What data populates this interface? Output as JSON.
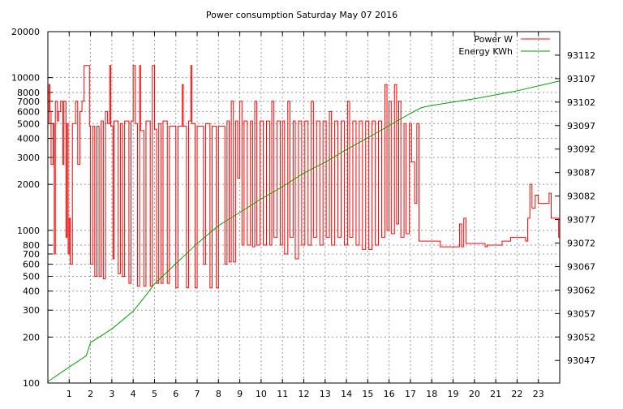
{
  "chart_data": {
    "type": "line",
    "title": "Power consumption Saturday May 07 2016",
    "xlabel": "",
    "ylabel": "",
    "xlim": [
      0,
      24
    ],
    "x_ticks": [
      1,
      2,
      3,
      4,
      5,
      6,
      7,
      8,
      9,
      10,
      11,
      12,
      13,
      14,
      15,
      16,
      17,
      18,
      19,
      20,
      21,
      22,
      23
    ],
    "y_left": {
      "scale": "log",
      "lim": [
        100,
        20000
      ],
      "tick_labels": [
        "100",
        "200",
        "300",
        "400",
        "500",
        "600",
        "700",
        "800",
        "1000",
        "2000",
        "3000",
        "4000",
        "5000",
        "6000",
        "7000",
        "8000",
        "10000",
        "20000"
      ],
      "ticks": [
        100,
        200,
        300,
        400,
        500,
        600,
        700,
        800,
        1000,
        2000,
        3000,
        4000,
        5000,
        6000,
        7000,
        8000,
        10000,
        20000
      ]
    },
    "y_right": {
      "scale": "linear",
      "lim": [
        93042.2,
        93117
      ],
      "ticks": [
        93047,
        93052,
        93057,
        93062,
        93067,
        93072,
        93077,
        93082,
        93087,
        93092,
        93097,
        93102,
        93107,
        93112
      ]
    },
    "grid": true,
    "legend_position": "top-right",
    "series": [
      {
        "name": "Power W",
        "axis": "left",
        "color": "#ff0000",
        "style": "steps",
        "points": [
          [
            0,
            5000
          ],
          [
            0.05,
            9000
          ],
          [
            0.1,
            6000
          ],
          [
            0.15,
            2700
          ],
          [
            0.25,
            5000
          ],
          [
            0.3,
            700
          ],
          [
            0.35,
            7000
          ],
          [
            0.45,
            5200
          ],
          [
            0.5,
            6000
          ],
          [
            0.6,
            7000
          ],
          [
            0.7,
            2700
          ],
          [
            0.75,
            7000
          ],
          [
            0.85,
            900
          ],
          [
            0.9,
            5000
          ],
          [
            0.95,
            700
          ],
          [
            1.0,
            1200
          ],
          [
            1.05,
            600
          ],
          [
            1.15,
            5000
          ],
          [
            1.3,
            7000
          ],
          [
            1.4,
            2700
          ],
          [
            1.5,
            6000
          ],
          [
            1.6,
            7000
          ],
          [
            1.7,
            12000
          ],
          [
            1.95,
            4800
          ],
          [
            2.0,
            600
          ],
          [
            2.1,
            4800
          ],
          [
            2.2,
            500
          ],
          [
            2.3,
            4800
          ],
          [
            2.4,
            500
          ],
          [
            2.5,
            5200
          ],
          [
            2.6,
            480
          ],
          [
            2.7,
            6000
          ],
          [
            2.8,
            5000
          ],
          [
            2.9,
            12000
          ],
          [
            2.95,
            4800
          ],
          [
            3.05,
            650
          ],
          [
            3.1,
            5200
          ],
          [
            3.3,
            520
          ],
          [
            3.4,
            5000
          ],
          [
            3.5,
            500
          ],
          [
            3.6,
            5200
          ],
          [
            3.8,
            450
          ],
          [
            3.9,
            5200
          ],
          [
            4.0,
            12000
          ],
          [
            4.1,
            5000
          ],
          [
            4.2,
            430
          ],
          [
            4.3,
            12000
          ],
          [
            4.35,
            4500
          ],
          [
            4.5,
            430
          ],
          [
            4.6,
            5200
          ],
          [
            4.8,
            430
          ],
          [
            4.9,
            12000
          ],
          [
            5.0,
            4600
          ],
          [
            5.1,
            450
          ],
          [
            5.2,
            5000
          ],
          [
            5.3,
            450
          ],
          [
            5.4,
            5200
          ],
          [
            5.6,
            450
          ],
          [
            5.7,
            4800
          ],
          [
            6.0,
            420
          ],
          [
            6.1,
            4800
          ],
          [
            6.3,
            9000
          ],
          [
            6.35,
            4800
          ],
          [
            6.5,
            420
          ],
          [
            6.6,
            5200
          ],
          [
            6.7,
            12000
          ],
          [
            6.75,
            5000
          ],
          [
            6.9,
            420
          ],
          [
            7.0,
            4800
          ],
          [
            7.3,
            600
          ],
          [
            7.4,
            5000
          ],
          [
            7.6,
            420
          ],
          [
            7.7,
            4800
          ],
          [
            7.9,
            420
          ],
          [
            8.0,
            4800
          ],
          [
            8.3,
            600
          ],
          [
            8.4,
            5200
          ],
          [
            8.5,
            620
          ],
          [
            8.6,
            7000
          ],
          [
            8.7,
            620
          ],
          [
            8.8,
            5200
          ],
          [
            8.9,
            2200
          ],
          [
            9.0,
            7000
          ],
          [
            9.1,
            800
          ],
          [
            9.2,
            5200
          ],
          [
            9.35,
            800
          ],
          [
            9.5,
            5200
          ],
          [
            9.6,
            780
          ],
          [
            9.7,
            7000
          ],
          [
            9.8,
            800
          ],
          [
            9.95,
            5200
          ],
          [
            10.1,
            800
          ],
          [
            10.25,
            5200
          ],
          [
            10.4,
            800
          ],
          [
            10.5,
            7000
          ],
          [
            10.6,
            900
          ],
          [
            10.75,
            5200
          ],
          [
            10.9,
            800
          ],
          [
            11.0,
            5200
          ],
          [
            11.1,
            700
          ],
          [
            11.25,
            7000
          ],
          [
            11.35,
            900
          ],
          [
            11.5,
            5200
          ],
          [
            11.6,
            650
          ],
          [
            11.75,
            5200
          ],
          [
            11.9,
            800
          ],
          [
            12.05,
            5200
          ],
          [
            12.2,
            800
          ],
          [
            12.35,
            7000
          ],
          [
            12.45,
            900
          ],
          [
            12.6,
            5200
          ],
          [
            12.75,
            800
          ],
          [
            12.9,
            5200
          ],
          [
            13.05,
            900
          ],
          [
            13.2,
            6000
          ],
          [
            13.3,
            800
          ],
          [
            13.45,
            5200
          ],
          [
            13.6,
            900
          ],
          [
            13.75,
            5200
          ],
          [
            13.9,
            800
          ],
          [
            14.05,
            7000
          ],
          [
            14.15,
            900
          ],
          [
            14.3,
            5200
          ],
          [
            14.45,
            800
          ],
          [
            14.6,
            5200
          ],
          [
            14.75,
            750
          ],
          [
            14.9,
            5200
          ],
          [
            15.05,
            750
          ],
          [
            15.2,
            5200
          ],
          [
            15.35,
            800
          ],
          [
            15.5,
            5200
          ],
          [
            15.65,
            900
          ],
          [
            15.8,
            9000
          ],
          [
            15.9,
            1000
          ],
          [
            16.0,
            7000
          ],
          [
            16.1,
            950
          ],
          [
            16.25,
            9000
          ],
          [
            16.35,
            1100
          ],
          [
            16.45,
            7000
          ],
          [
            16.55,
            900
          ],
          [
            16.7,
            5000
          ],
          [
            16.8,
            950
          ],
          [
            16.95,
            5000
          ],
          [
            17.05,
            2800
          ],
          [
            17.2,
            1500
          ],
          [
            17.3,
            5000
          ],
          [
            17.4,
            850
          ],
          [
            18.0,
            850
          ],
          [
            18.4,
            780
          ],
          [
            19.3,
            1100
          ],
          [
            19.4,
            780
          ],
          [
            19.5,
            1200
          ],
          [
            19.6,
            820
          ],
          [
            20.5,
            780
          ],
          [
            20.6,
            800
          ],
          [
            21.3,
            850
          ],
          [
            21.7,
            900
          ],
          [
            22.4,
            850
          ],
          [
            22.5,
            1200
          ],
          [
            22.6,
            2000
          ],
          [
            22.7,
            1400
          ],
          [
            22.85,
            1700
          ],
          [
            23.0,
            1500
          ],
          [
            23.5,
            1750
          ],
          [
            23.6,
            1200
          ],
          [
            23.95,
            900
          ],
          [
            24,
            900
          ]
        ]
      },
      {
        "name": "Energy KWh",
        "axis": "right",
        "color": "#00a000",
        "style": "line",
        "points": [
          [
            0,
            93042.5
          ],
          [
            1,
            93045.6
          ],
          [
            1.8,
            93048
          ],
          [
            2,
            93050.8
          ],
          [
            3,
            93053.7
          ],
          [
            4,
            93057.5
          ],
          [
            4.5,
            93060.3
          ],
          [
            5,
            93063.3
          ],
          [
            6,
            93067.6
          ],
          [
            7,
            93071.9
          ],
          [
            8,
            93075.7
          ],
          [
            9,
            93078.5
          ],
          [
            10,
            93081.4
          ],
          [
            11,
            93084
          ],
          [
            12,
            93086.9
          ],
          [
            13,
            93089.2
          ],
          [
            14,
            93091.9
          ],
          [
            15,
            93094.4
          ],
          [
            16,
            93097
          ],
          [
            17,
            93099.6
          ],
          [
            17.5,
            93100.8
          ],
          [
            18,
            93101.3
          ],
          [
            20,
            93102.7
          ],
          [
            22,
            93104.4
          ],
          [
            24,
            93106.5
          ]
        ]
      }
    ]
  }
}
